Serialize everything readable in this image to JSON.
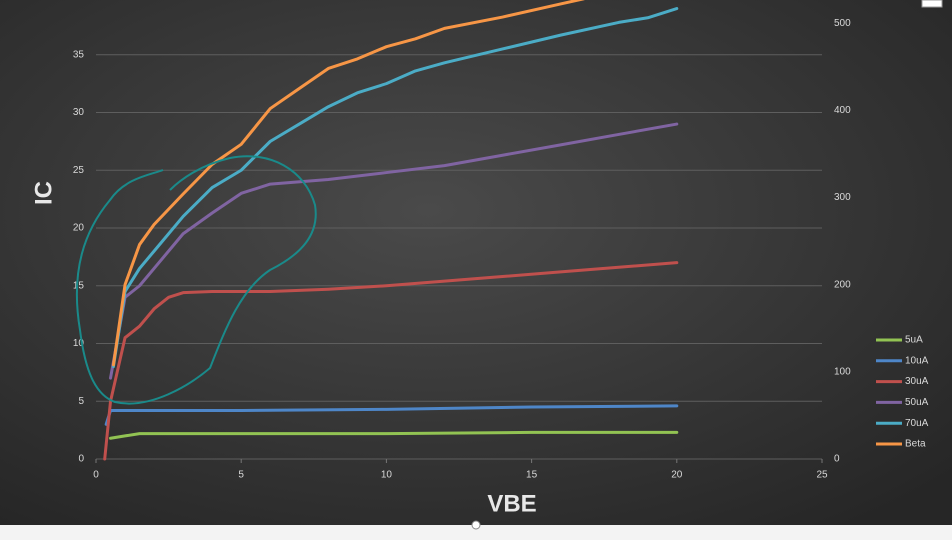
{
  "chart_data": {
    "type": "line",
    "x_label": "VBE",
    "y_label": "IC",
    "xlim": [
      0,
      25
    ],
    "xticks": [
      0,
      5,
      10,
      15,
      20,
      25
    ],
    "ylim": [
      0,
      40
    ],
    "yticks": [
      0,
      5,
      10,
      15,
      20,
      25,
      30,
      35
    ],
    "y2lim": [
      0,
      530
    ],
    "y2ticks": [
      0,
      100,
      200,
      300,
      400,
      500
    ],
    "grid": true,
    "legend": "right",
    "series": [
      {
        "name": "5uA",
        "color": "#92c353",
        "x": [
          0.5,
          1,
          1.5,
          5,
          10,
          15,
          20
        ],
        "values": [
          1.8,
          2.0,
          2.2,
          2.2,
          2.2,
          2.3,
          2.3
        ]
      },
      {
        "name": "10uA",
        "color": "#4e86c8",
        "x": [
          0.35,
          0.5,
          1,
          5,
          10,
          15,
          20
        ],
        "values": [
          3.0,
          4.2,
          4.2,
          4.2,
          4.3,
          4.5,
          4.6
        ]
      },
      {
        "name": "30uA",
        "color": "#c0504d",
        "x": [
          0.3,
          0.5,
          1,
          1.5,
          2,
          2.5,
          3,
          4,
          6,
          8,
          10,
          12,
          14,
          16,
          18,
          20
        ],
        "values": [
          0,
          5,
          10.5,
          11.5,
          13,
          14,
          14.4,
          14.5,
          14.5,
          14.7,
          15,
          15.4,
          15.8,
          16.2,
          16.6,
          17
        ]
      },
      {
        "name": "50uA",
        "color": "#8064a2",
        "x": [
          0.5,
          1,
          1.5,
          2,
          3,
          4,
          5,
          6,
          8,
          10,
          12,
          14,
          16,
          18,
          20
        ],
        "values": [
          7,
          14,
          15,
          16.5,
          19.5,
          21.3,
          23,
          23.8,
          24.2,
          24.8,
          25.4,
          26.3,
          27.2,
          28.1,
          29
        ]
      },
      {
        "name": "70uA",
        "color": "#4bacc6",
        "x": [
          0.6,
          1,
          1.5,
          2,
          3,
          4,
          5,
          6,
          7,
          8,
          9,
          10,
          11,
          12,
          14,
          16,
          18,
          19,
          20
        ],
        "values": [
          8,
          14.5,
          16.5,
          18,
          21,
          23.5,
          25,
          27.5,
          29,
          30.5,
          31.7,
          32.5,
          33.6,
          34.3,
          35.5,
          36.7,
          37.8,
          38.2,
          39
        ]
      },
      {
        "name": "Beta",
        "color": "#f79646",
        "axis": "y2",
        "x": [
          0.6,
          1,
          1.5,
          2,
          3,
          4,
          5,
          6,
          7,
          8,
          9,
          10,
          11,
          12,
          14,
          16,
          16.8
        ],
        "values": [
          108,
          200,
          246,
          269,
          304,
          338,
          361,
          402,
          425,
          448,
          459,
          473,
          482,
          494,
          507,
          522,
          528
        ]
      }
    ]
  }
}
